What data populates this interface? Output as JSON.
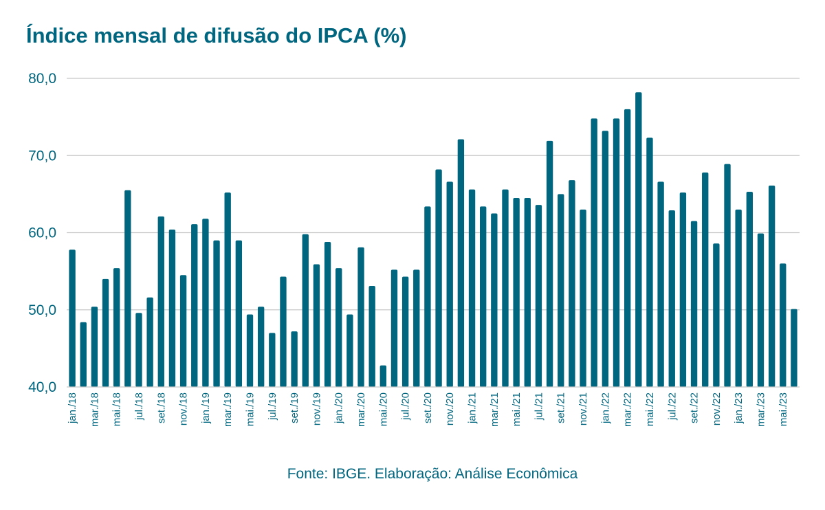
{
  "chart_data": {
    "type": "bar",
    "title": "Índice mensal de difusão do IPCA (%)",
    "source": "Fonte: IBGE. Elaboração: Análise Econômica",
    "color": "#00667f",
    "gridline_color": "#c8c8c8",
    "ylim": [
      40,
      80
    ],
    "yticks": [
      "40,0",
      "50,0",
      "60,0",
      "70,0",
      "80,0"
    ],
    "grid": true,
    "categories": [
      "jan./18",
      "fev./18",
      "mar./18",
      "abr./18",
      "mai./18",
      "jun./18",
      "jul./18",
      "ago./18",
      "set./18",
      "out./18",
      "nov./18",
      "dez./18",
      "jan./19",
      "fev./19",
      "mar./19",
      "abr./19",
      "mai./19",
      "jun./19",
      "jul./19",
      "ago./19",
      "set./19",
      "out./19",
      "nov./19",
      "dez./19",
      "jan./20",
      "fev./20",
      "mar./20",
      "abr./20",
      "mai./20",
      "jun./20",
      "jul./20",
      "ago./20",
      "set./20",
      "out./20",
      "nov./20",
      "dez./20",
      "jan./21",
      "fev./21",
      "mar./21",
      "abr./21",
      "mai./21",
      "jun./21",
      "jul./21",
      "ago./21",
      "set./21",
      "out./21",
      "nov./21",
      "dez./21",
      "jan./22",
      "fev./22",
      "mar./22",
      "abr./22",
      "mai./22",
      "jun./22",
      "jul./22",
      "ago./22",
      "set./22",
      "out./22",
      "nov./22",
      "dez./22",
      "jan./23",
      "fev./23",
      "mar./23",
      "abr./23",
      "mai./23",
      "jun./23"
    ],
    "visible_xtick_labels": [
      "jan./18",
      "mar./18",
      "mai./18",
      "jul./18",
      "set./18",
      "nov./18",
      "jan./19",
      "mar./19",
      "mai./19",
      "jul./19",
      "set./19",
      "nov./19",
      "jan./20",
      "mar./20",
      "mai./20",
      "jul./20",
      "set./20",
      "nov./20",
      "jan./21",
      "mar./21",
      "mai./21",
      "jul./21",
      "set./21",
      "nov./21",
      "jan./22",
      "mar./22",
      "mai./22",
      "jul./22",
      "set./22",
      "nov./22",
      "jan./23",
      "mar./23",
      "mai./23"
    ],
    "values": [
      57.8,
      48.4,
      50.4,
      54.0,
      55.4,
      65.5,
      49.6,
      51.6,
      62.1,
      60.4,
      54.5,
      61.1,
      61.8,
      59.0,
      65.2,
      59.0,
      49.4,
      50.4,
      47.0,
      54.3,
      47.2,
      59.8,
      55.9,
      58.8,
      55.4,
      49.4,
      58.1,
      53.1,
      42.8,
      55.2,
      54.3,
      55.2,
      63.4,
      68.2,
      66.6,
      72.1,
      65.6,
      63.4,
      62.5,
      65.6,
      64.5,
      64.5,
      63.6,
      71.9,
      65.0,
      66.8,
      63.0,
      74.8,
      73.2,
      74.8,
      76.0,
      78.2,
      72.3,
      66.6,
      62.9,
      65.2,
      61.5,
      67.8,
      58.6,
      68.9,
      63.0,
      65.3,
      59.9,
      66.1,
      56.0,
      50.1
    ]
  }
}
